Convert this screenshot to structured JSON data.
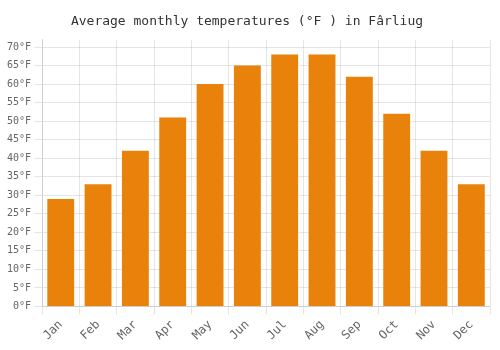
{
  "chart_data": {
    "type": "bar",
    "title": "Average monthly temperatures (°F ) in Fârliug",
    "categories": [
      "Jan",
      "Feb",
      "Mar",
      "Apr",
      "May",
      "Jun",
      "Jul",
      "Aug",
      "Sep",
      "Oct",
      "Nov",
      "Dec"
    ],
    "values": [
      29,
      33,
      42,
      51,
      60,
      65,
      68,
      68,
      62,
      52,
      42,
      33
    ],
    "color": "#E8820A",
    "ylim": [
      0,
      72
    ],
    "yticks": [
      {
        "value": 0,
        "label": "0°F"
      },
      {
        "value": 5,
        "label": "5°F"
      },
      {
        "value": 10,
        "label": "10°F"
      },
      {
        "value": 15,
        "label": "15°F"
      },
      {
        "value": 20,
        "label": "20°F"
      },
      {
        "value": 25,
        "label": "25°F"
      },
      {
        "value": 30,
        "label": "30°F"
      },
      {
        "value": 35,
        "label": "35°F"
      },
      {
        "value": 40,
        "label": "40°F"
      },
      {
        "value": 45,
        "label": "45°F"
      },
      {
        "value": 50,
        "label": "50°F"
      },
      {
        "value": 55,
        "label": "55°F"
      },
      {
        "value": 60,
        "label": "60°F"
      },
      {
        "value": 65,
        "label": "65°F"
      },
      {
        "value": 70,
        "label": "70°F"
      }
    ],
    "grid": true
  }
}
